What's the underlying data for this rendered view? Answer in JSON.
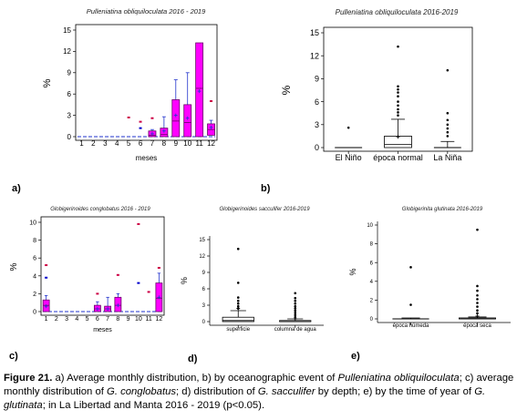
{
  "figure": {
    "caption_label": "Figure 21.",
    "caption_parts": [
      {
        "t": " a) Average monthly distribution, b) by oceanographic event of "
      },
      {
        "t": "Pulleniatina obliquiloculata",
        "i": true
      },
      {
        "t": "; c) average monthly distribution of "
      },
      {
        "t": "G. conglobatus",
        "i": true
      },
      {
        "t": "; d) distribution of "
      },
      {
        "t": "G. sacculifer",
        "i": true
      },
      {
        "t": " by depth; e) by the time of year of "
      },
      {
        "t": "G. glutinata",
        "i": true
      },
      {
        "t": "; in La Libertad and Manta 2016 - 2019 (p<0.05)."
      }
    ],
    "panel_letters": {
      "a": "a)",
      "b": "b)",
      "c": "c)",
      "d": "d)",
      "e": "e)"
    }
  },
  "chart_data": [
    {
      "id": "a",
      "type": "bar",
      "title": "Pulleniatina obliquiloculata 2016 - 2019",
      "xlabel": "meses",
      "ylabel": "%",
      "ylim": [
        0,
        15
      ],
      "yticks": [
        0,
        3,
        6,
        9,
        12,
        15
      ],
      "categories": [
        "1",
        "2",
        "3",
        "4",
        "5",
        "6",
        "7",
        "8",
        "9",
        "10",
        "11",
        "12"
      ],
      "boxes": [
        {
          "q1": 0,
          "q3": 0,
          "median": 0,
          "whisker_low": 0,
          "whisker_high": 0,
          "outliers": []
        },
        {
          "q1": 0,
          "q3": 0,
          "median": 0,
          "whisker_low": 0,
          "whisker_high": 0,
          "outliers": []
        },
        {
          "q1": 0,
          "q3": 0,
          "median": 0,
          "whisker_low": 0,
          "whisker_high": 0,
          "outliers": []
        },
        {
          "q1": 0,
          "q3": 0,
          "median": 0,
          "whisker_low": 0,
          "whisker_high": 0,
          "outliers": []
        },
        {
          "q1": 0,
          "q3": 0,
          "median": 0,
          "whisker_low": 0,
          "whisker_high": 0,
          "outliers": [
            2.7
          ]
        },
        {
          "q1": 0,
          "q3": 0,
          "median": 0,
          "whisker_low": 0,
          "whisker_high": 0,
          "outliers": [
            2.1,
            1.2
          ]
        },
        {
          "q1": 0,
          "q3": 0.8,
          "median": 0.2,
          "whisker_low": 0,
          "whisker_high": 1.0,
          "outliers": [
            2.6
          ]
        },
        {
          "q1": 0,
          "q3": 1.2,
          "median": 0.3,
          "whisker_low": 0,
          "whisker_high": 2.8,
          "outliers": []
        },
        {
          "q1": 0,
          "q3": 5.2,
          "median": 2.2,
          "whisker_low": 0,
          "whisker_high": 8.0,
          "outliers": []
        },
        {
          "q1": 0,
          "q3": 4.5,
          "median": 2.0,
          "whisker_low": 0,
          "whisker_high": 9.0,
          "outliers": []
        },
        {
          "q1": 0,
          "q3": 13.2,
          "median": 6.8,
          "whisker_low": 0,
          "whisker_high": 13.2,
          "outliers": []
        },
        {
          "q1": 0.2,
          "q3": 1.8,
          "median": 1.0,
          "whisker_low": 0,
          "whisker_high": 2.3,
          "outliers": [
            5.0
          ]
        }
      ],
      "mean_markers": [
        0,
        0,
        0,
        0,
        0,
        0,
        0.4,
        0.8,
        3.0,
        2.6,
        6.4,
        1.3
      ],
      "box_color": "#ff00ff",
      "outlier_colors": [
        "#cc0044",
        "#0000cc"
      ]
    },
    {
      "id": "b",
      "type": "box",
      "title": "Pulleniatina obliquiloculata 2016-2019",
      "xlabel": "",
      "ylabel": "%",
      "ylim": [
        0,
        15
      ],
      "yticks": [
        0,
        3,
        6,
        9,
        12,
        15
      ],
      "categories": [
        "El Niño",
        "época normal",
        "La Niña"
      ],
      "boxes": [
        {
          "q1": 0,
          "q3": 0,
          "median": 0,
          "whisker_low": 0,
          "whisker_high": 0,
          "outliers": [
            2.6
          ]
        },
        {
          "q1": 0,
          "q3": 1.5,
          "median": 0.4,
          "whisker_low": 0,
          "whisker_high": 3.7,
          "outliers": [
            4.2,
            4.6,
            5.0,
            5.5,
            6.0,
            6.7,
            7.2,
            7.6,
            8.0,
            13.2
          ]
        },
        {
          "q1": 0,
          "q3": 0,
          "median": 0,
          "whisker_low": 0,
          "whisker_high": 0.8,
          "outliers": [
            1.5,
            2.0,
            2.5,
            3.0,
            3.6,
            4.5,
            10.1
          ]
        }
      ],
      "mean_markers": [
        0,
        1.4,
        0.7
      ],
      "box_color": "#ffffff"
    },
    {
      "id": "c",
      "type": "bar",
      "title": "Globigerinoides conglobatus 2016 - 2019",
      "xlabel": "meses",
      "ylabel": "%",
      "ylim": [
        0,
        10
      ],
      "yticks": [
        0,
        2,
        4,
        6,
        8,
        10
      ],
      "categories": [
        "1",
        "2",
        "3",
        "4",
        "5",
        "6",
        "7",
        "8",
        "9",
        "10",
        "11",
        "12"
      ],
      "boxes": [
        {
          "q1": 0,
          "q3": 1.3,
          "median": 0.7,
          "whisker_low": 0,
          "whisker_high": 1.8,
          "outliers": [
            5.2,
            3.8
          ]
        },
        {
          "q1": 0,
          "q3": 0,
          "median": 0,
          "whisker_low": 0,
          "whisker_high": 0,
          "outliers": []
        },
        {
          "q1": 0,
          "q3": 0,
          "median": 0,
          "whisker_low": 0,
          "whisker_high": 0,
          "outliers": []
        },
        {
          "q1": 0,
          "q3": 0,
          "median": 0,
          "whisker_low": 0,
          "whisker_high": 0,
          "outliers": []
        },
        {
          "q1": 0,
          "q3": 0,
          "median": 0,
          "whisker_low": 0,
          "whisker_high": 0,
          "outliers": []
        },
        {
          "q1": 0,
          "q3": 0.7,
          "median": 0.3,
          "whisker_low": 0,
          "whisker_high": 1.1,
          "outliers": [
            2.0
          ]
        },
        {
          "q1": 0,
          "q3": 0.6,
          "median": 0.3,
          "whisker_low": 0,
          "whisker_high": 1.6,
          "outliers": []
        },
        {
          "q1": 0,
          "q3": 1.6,
          "median": 0.7,
          "whisker_low": 0,
          "whisker_high": 2.0,
          "outliers": [
            4.1
          ]
        },
        {
          "q1": 0,
          "q3": 0,
          "median": 0,
          "whisker_low": 0,
          "whisker_high": 0,
          "outliers": []
        },
        {
          "q1": 0,
          "q3": 0,
          "median": 0,
          "whisker_low": 0,
          "whisker_high": 0,
          "outliers": [
            9.8,
            3.2
          ]
        },
        {
          "q1": 0,
          "q3": 0,
          "median": 0,
          "whisker_low": 0,
          "whisker_high": 0,
          "outliers": [
            2.2
          ]
        },
        {
          "q1": 0,
          "q3": 3.2,
          "median": 1.5,
          "whisker_low": 0,
          "whisker_high": 4.3,
          "outliers": [
            4.9
          ]
        }
      ],
      "mean_markers": [
        0.6,
        0,
        0,
        0,
        0,
        0.3,
        0.3,
        0.7,
        0,
        0,
        0,
        1.6
      ],
      "box_color": "#ff00ff",
      "outlier_colors": [
        "#cc0044",
        "#0000cc"
      ]
    },
    {
      "id": "d",
      "type": "box",
      "title": "Globigerinoides sacculifer 2016-2019",
      "xlabel": "",
      "ylabel": "%",
      "ylim": [
        0,
        15
      ],
      "yticks": [
        0,
        3,
        6,
        9,
        12,
        15
      ],
      "categories": [
        "superficie",
        "columna de agua"
      ],
      "boxes": [
        {
          "q1": 0,
          "q3": 0.8,
          "median": 0.2,
          "whisker_low": 0,
          "whisker_high": 2.0,
          "outliers": [
            2.4,
            2.8,
            3.3,
            3.8,
            4.4,
            7.1,
            13.3
          ]
        },
        {
          "q1": 0,
          "q3": 0.2,
          "median": 0,
          "whisker_low": 0,
          "whisker_high": 0.5,
          "outliers": [
            0.8,
            1.2,
            1.6,
            2.0,
            2.4,
            2.8,
            3.3,
            3.8,
            4.3,
            5.2
          ]
        }
      ],
      "mean_markers": [
        2.4,
        0.5
      ],
      "box_color": "#ffffff"
    },
    {
      "id": "e",
      "type": "box",
      "title": "Globigerinita glutinata 2016-2019",
      "xlabel": "",
      "ylabel": "%",
      "ylim": [
        0,
        10
      ],
      "yticks": [
        0,
        2,
        4,
        6,
        8,
        10
      ],
      "categories": [
        "época húmeda",
        "época seca"
      ],
      "boxes": [
        {
          "q1": 0,
          "q3": 0,
          "median": 0,
          "whisker_low": 0,
          "whisker_high": 0.1,
          "outliers": [
            1.5,
            5.5
          ]
        },
        {
          "q1": 0,
          "q3": 0.1,
          "median": 0,
          "whisker_low": 0,
          "whisker_high": 0.2,
          "outliers": [
            0.6,
            0.9,
            1.3,
            1.7,
            2.1,
            2.5,
            3.0,
            3.5,
            9.5
          ]
        }
      ],
      "mean_markers": [
        0.15,
        0.3
      ],
      "box_color": "#ffffff"
    }
  ]
}
